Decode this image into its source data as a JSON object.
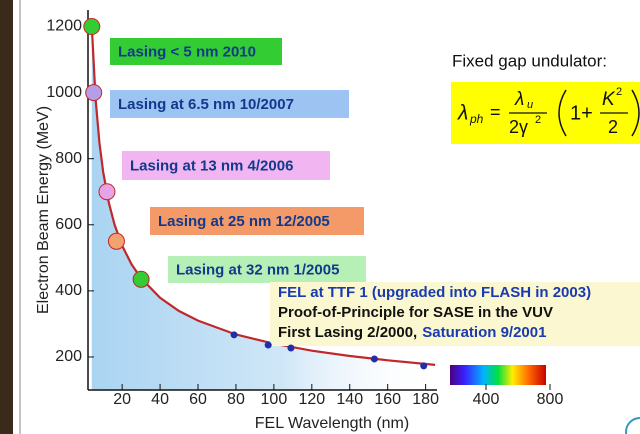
{
  "chart_data": {
    "type": "scatter",
    "x_label": "FEL Wavelength (nm)",
    "y_label": "Electron Beam Energy (MeV)",
    "xlim": [
      2,
      186
    ],
    "ylim": [
      100,
      1250
    ],
    "xticks": [
      20,
      40,
      60,
      80,
      100,
      120,
      140,
      160,
      180
    ],
    "yticks": [
      200,
      400,
      600,
      800,
      1000,
      1200
    ],
    "x2lim": [
      175,
      1050
    ],
    "x2ticks": [
      400,
      800
    ],
    "curve": {
      "color": "#c0282a",
      "x": [
        4,
        6,
        8,
        10,
        13,
        16,
        20,
        25,
        30,
        40,
        50,
        60,
        80,
        100,
        120,
        140,
        160,
        185
      ],
      "values": [
        1200,
        980,
        849,
        759,
        666,
        600,
        537,
        480,
        438,
        379,
        339,
        310,
        268,
        240,
        219,
        203,
        190,
        176
      ]
    },
    "milestones": {
      "x": [
        4,
        5,
        12,
        17,
        30
      ],
      "values": [
        1200,
        1000,
        700,
        550,
        435
      ],
      "colors": [
        "#33cc33",
        "#b49ee8",
        "#e6a3e6",
        "#f2a26e",
        "#33cc33"
      ]
    },
    "early_points": {
      "color": "#1f2fa8",
      "x": [
        79,
        97,
        109,
        153,
        179
      ],
      "values": [
        267,
        236,
        227,
        194,
        173
      ]
    },
    "annotations": [
      {
        "text": "Lasing < 5 nm 2010",
        "color": "#33cc33"
      },
      {
        "text": "Lasing at 6.5 nm 10/2007",
        "color": "#9cc3f2"
      },
      {
        "text": "Lasing at 13 nm 4/2006",
        "color": "#f1b5f1"
      },
      {
        "text": "Lasing at 25 nm 12/2005",
        "color": "#f49a68"
      },
      {
        "text": "Lasing at 32 nm 1/2005",
        "color": "#b6f0b6"
      }
    ],
    "flash_note": {
      "line1": "FEL at TTF 1 (upgraded into FLASH in 2003)",
      "line2": "Proof-of-Principle for SASE in the VUV",
      "line3a": "First Lasing 2/2000,",
      "line3b": "Saturation 9/2001"
    },
    "undulator_label": "Fixed gap undulator:",
    "formula": {
      "lhs": "λ",
      "lhs_sub": "ph",
      "eq": "=",
      "num": "λ",
      "num_sub": "u",
      "den": "2γ",
      "den_sup": "2",
      "one_plus": "1+",
      "k": "K",
      "k_sup": "2",
      "k_den": "2"
    }
  }
}
